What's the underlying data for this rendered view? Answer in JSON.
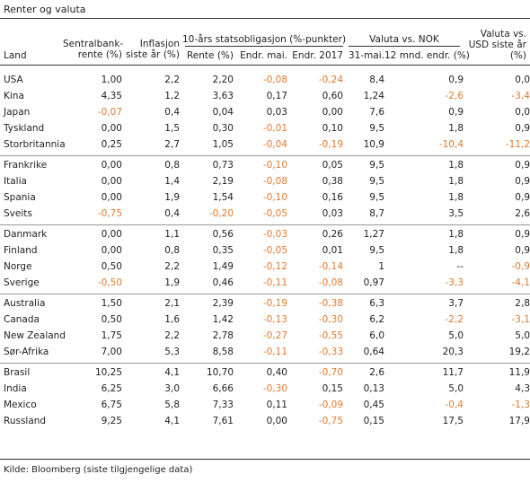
{
  "title": "Renter og valuta",
  "headers": {
    "land": "Land",
    "sentralbank": [
      "Sentralbank-",
      "rente (%)"
    ],
    "inflasjon": [
      "Inflasjon",
      "siste år (%)"
    ],
    "stats_group": "10-års statsobligasjon (%-punkter)",
    "rente": "Rente (%)",
    "endr_mai": "Endr. mai.",
    "endr_2017": "Endr. 2017",
    "valuta_group": "Valuta vs. NOK",
    "mai31": "31-mai.",
    "mnd12": "12 mnd. endr. (%)",
    "usd": [
      "Valuta vs.",
      "USD siste år",
      "(%)"
    ]
  },
  "accent_color": "#e37a2c",
  "groups": [
    [
      [
        "USA",
        "1,00",
        "2,2",
        "2,20",
        "-0,08",
        "-0,24",
        "8,4",
        "0,9",
        "0,0"
      ],
      [
        "Kina",
        "4,35",
        "1,2",
        "3,63",
        "0,17",
        "0,60",
        "1,24",
        "-2,6",
        "-3,4"
      ],
      [
        "Japan",
        "-0,07",
        "0,4",
        "0,04",
        "0,03",
        "0,00",
        "7,6",
        "0,9",
        "0,0"
      ],
      [
        "Tyskland",
        "0,00",
        "1,5",
        "0,30",
        "-0,01",
        "0,10",
        "9,5",
        "1,8",
        "0,9"
      ],
      [
        "Storbritannia",
        "0,25",
        "2,7",
        "1,05",
        "-0,04",
        "-0,19",
        "10,9",
        "-10,4",
        "-11,2"
      ]
    ],
    [
      [
        "Frankrike",
        "0,00",
        "0,8",
        "0,73",
        "-0,10",
        "0,05",
        "9,5",
        "1,8",
        "0,9"
      ],
      [
        "Italia",
        "0,00",
        "1,4",
        "2,19",
        "-0,08",
        "0,38",
        "9,5",
        "1,8",
        "0,9"
      ],
      [
        "Spania",
        "0,00",
        "1,9",
        "1,54",
        "-0,10",
        "0,16",
        "9,5",
        "1,8",
        "0,9"
      ],
      [
        "Sveits",
        "-0,75",
        "0,4",
        "-0,20",
        "-0,05",
        "0,03",
        "8,7",
        "3,5",
        "2,6"
      ]
    ],
    [
      [
        "Danmark",
        "0,00",
        "1,1",
        "0,56",
        "-0,03",
        "0,26",
        "1,27",
        "1,8",
        "0,9"
      ],
      [
        "Finland",
        "0,00",
        "0,8",
        "0,35",
        "-0,05",
        "0,01",
        "9,5",
        "1,8",
        "0,9"
      ],
      [
        "Norge",
        "0,50",
        "2,2",
        "1,49",
        "-0,12",
        "-0,14",
        "1",
        "--",
        "-0,9"
      ],
      [
        "Sverige",
        "-0,50",
        "1,9",
        "0,46",
        "-0,11",
        "-0,08",
        "0,97",
        "-3,3",
        "-4,1"
      ]
    ],
    [
      [
        "Australia",
        "1,50",
        "2,1",
        "2,39",
        "-0,19",
        "-0,38",
        "6,3",
        "3,7",
        "2,8"
      ],
      [
        "Canada",
        "0,50",
        "1,6",
        "1,42",
        "-0,13",
        "-0,30",
        "6,2",
        "-2,2",
        "-3,1"
      ],
      [
        "New Zealand",
        "1,75",
        "2,2",
        "2,78",
        "-0,27",
        "-0,55",
        "6,0",
        "5,0",
        "5,0"
      ],
      [
        "Sør-Afrika",
        "7,00",
        "5,3",
        "8,58",
        "-0,11",
        "-0,33",
        "0,64",
        "20,3",
        "19,2"
      ]
    ],
    [
      [
        "Brasil",
        "10,25",
        "4,1",
        "10,70",
        "0,40",
        "-0,70",
        "2,6",
        "11,7",
        "11,9"
      ],
      [
        "India",
        "6,25",
        "3,0",
        "6,66",
        "-0,30",
        "0,15",
        "0,13",
        "5,0",
        "4,3"
      ],
      [
        "Mexico",
        "6,75",
        "5,8",
        "7,33",
        "0,11",
        "-0,09",
        "0,45",
        "-0,4",
        "-1,3"
      ],
      [
        "Russland",
        "9,25",
        "4,1",
        "7,61",
        "0,00",
        "-0,75",
        "0,15",
        "17,5",
        "17,9"
      ]
    ]
  ],
  "source": "Kilde: Bloomberg (siste tilgjengelige data)"
}
